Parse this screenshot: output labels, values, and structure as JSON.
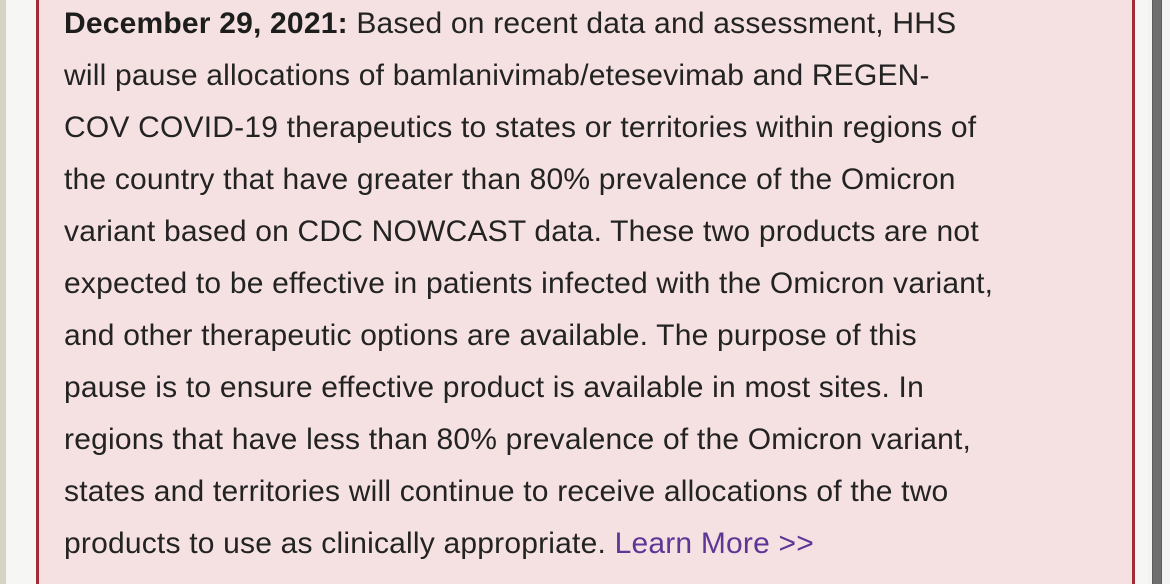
{
  "notice": {
    "date_label": "December 29, 2021:",
    "line1_rest": " Based on recent data and assessment, HHS",
    "middle_lines": [
      "will pause allocations of bamlanivimab/etesevimab and REGEN-",
      "COV COVID-19 therapeutics to states or territories within regions of",
      "the country that have greater than 80% prevalence of the Omicron",
      "variant based on CDC NOWCAST data. These two products are not",
      "expected to be effective in patients infected with the Omicron variant,",
      "and other therapeutic options are available. The purpose of this",
      "pause is to ensure effective product is available in most sites. In",
      "regions that have less than 80% prevalence of the Omicron variant,",
      "states and territories will continue to receive allocations of the two"
    ],
    "last_line_pre": "products to use as clinically appropriate. ",
    "link_label": "Learn More >>"
  },
  "colors": {
    "notice_background": "#f5e1e2",
    "notice_border": "#a22c35",
    "body_text": "#232323",
    "link_purple": "#5f3596",
    "page_background": "#f6f6f5",
    "left_edge_strip": "#d6d3c5",
    "scrollbar_thumb": "#6e6e6e"
  }
}
